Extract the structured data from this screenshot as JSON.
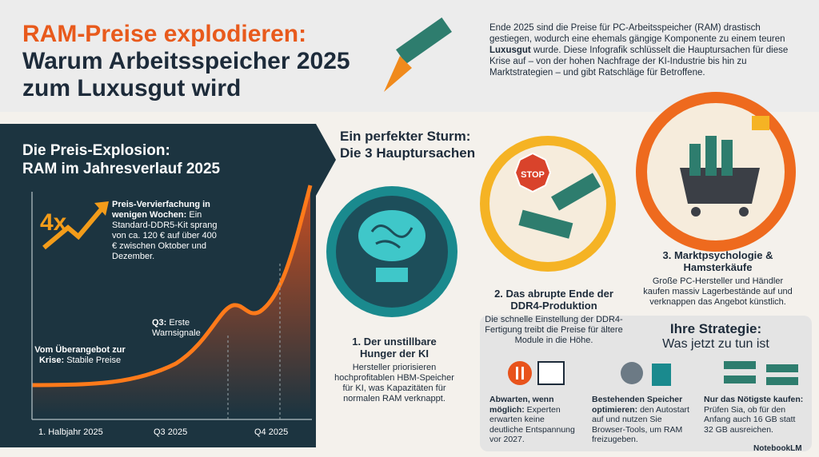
{
  "header": {
    "title_lines": [
      "RAM-Preise explodieren:",
      "Warum Arbeitsspeicher 2025",
      "zum Luxusgut wird"
    ],
    "intro": [
      "Ende 2025 sind die Preise für PC-Arbeitsspeicher (RAM) drastisch gestiegen, wodurch eine ehemals gängige Komponente zu einem teuren ",
      "Luxusgut",
      " wurde. Diese Infografik schlüsselt die Hauptursachen für diese Krise auf – von der hohen Nachfrage der KI-Industrie bis hin zu Marktstrategien – und gibt Ratschläge für Betroffene."
    ]
  },
  "price_panel": {
    "title_lines": [
      "Die Preis-Explosion:",
      "RAM im Jahresverlauf 2025"
    ],
    "badge": "4x",
    "callout_heading": "Preis-Vervierfachung in wenigen Wochen:",
    "callout_text": "Ein Standard-DDR5-Kit sprang von ca. 120 € auf über 400 € zwischen Oktober und Dezember.",
    "annotations": [
      {
        "label": "Q3:",
        "text": "Erste Warnsignale"
      },
      {
        "label": "Vom Überangebot zur Krise:",
        "text": "Stabile Preise"
      }
    ],
    "x_labels": [
      "1. Halbjahr 2025",
      "Q3 2025",
      "Q4 2025"
    ]
  },
  "causes": {
    "title_lines": [
      "Ein perfekter Sturm:",
      "Die 3 Hauptursachen"
    ],
    "stop_sign": "STOP",
    "items": [
      {
        "title": "1. Der unstillbare Hunger der KI",
        "text": "Hersteller priorisieren hochprofitablen HBM-Speicher für KI, was Kapazitäten für normalen RAM verknappt."
      },
      {
        "title": "2. Das abrupte Ende der DDR4-Produktion",
        "text": "Die schnelle Einstellung der DDR4-Fertigung treibt die Preise für ältere Module in die Höhe."
      },
      {
        "title": "3. Marktpsychologie & Hamsterkäufe",
        "text": "Große PC-Hersteller und Händler kaufen massiv Lagerbestände auf und verknappen das Angebot künstlich."
      }
    ]
  },
  "strategy": {
    "title": "Ihre Strategie:",
    "subtitle": "Was jetzt zu tun ist",
    "tips": [
      {
        "heading": "Abwarten, wenn möglich:",
        "text": "Experten erwarten keine deutliche Entspannung vor 2027."
      },
      {
        "heading": "Bestehenden Speicher optimieren:",
        "text": "den Autostart auf und nutzen Sie Browser-Tools, um RAM freizugeben."
      },
      {
        "heading": "Nur das Nötigste kaufen:",
        "text": "Prüfen Sia, ob für den Anfang auch 16 GB statt 32 GB ausreichen."
      }
    ]
  },
  "footer": {
    "brand": "NotebookLM"
  }
}
